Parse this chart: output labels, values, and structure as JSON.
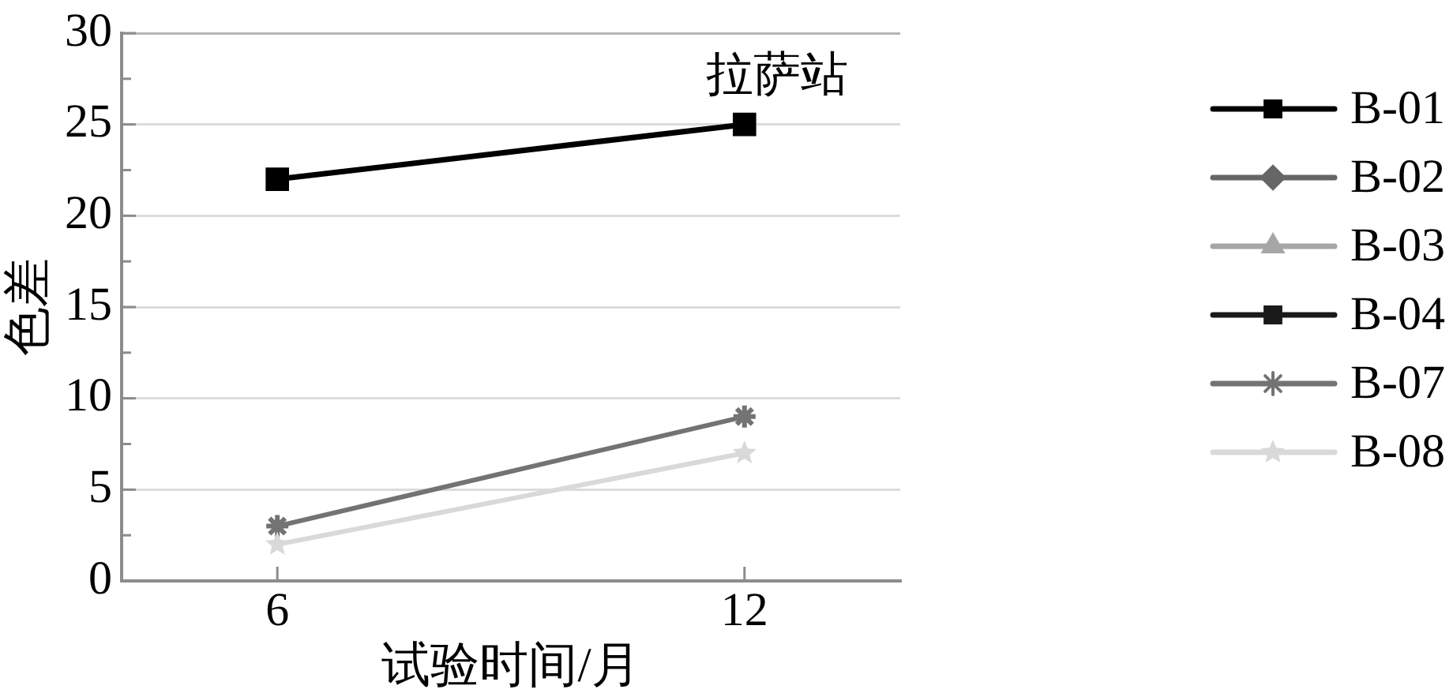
{
  "chart_data": {
    "type": "line",
    "xlabel": "试验时间/月",
    "ylabel": "色差",
    "annotations": [
      "拉萨站"
    ],
    "x": [
      6,
      12
    ],
    "xlim": [
      4,
      14
    ],
    "xticks": [
      6,
      12
    ],
    "ylim": [
      0,
      30
    ],
    "yticks": [
      0,
      {
        "value": 2.5,
        "label": null
      },
      5,
      {
        "value": 7.5,
        "label": null
      },
      10,
      {
        "value": 12.5,
        "label": null
      },
      15,
      {
        "value": 17.5,
        "label": null
      },
      20,
      {
        "value": 22.5,
        "label": null
      },
      25,
      {
        "value": 27.5,
        "label": null
      },
      30
    ],
    "series": [
      {
        "name": "B-01",
        "color": "#000000",
        "marker": "square",
        "values": [
          22,
          25
        ]
      },
      {
        "name": "B-02",
        "color": "#666666",
        "marker": "diamond",
        "values": [
          null,
          null
        ]
      },
      {
        "name": "B-03",
        "color": "#a6a6a6",
        "marker": "triangle",
        "values": [
          null,
          null
        ]
      },
      {
        "name": "B-04",
        "color": "#1a1a1a",
        "marker": "square",
        "values": [
          null,
          null
        ]
      },
      {
        "name": "B-07",
        "color": "#737373",
        "marker": "cross",
        "values": [
          3,
          9
        ]
      },
      {
        "name": "B-08",
        "color": "#d9d9d9",
        "marker": "star",
        "values": [
          2,
          7
        ]
      }
    ],
    "grid": "y",
    "legend": "right",
    "line_style": "solid"
  }
}
